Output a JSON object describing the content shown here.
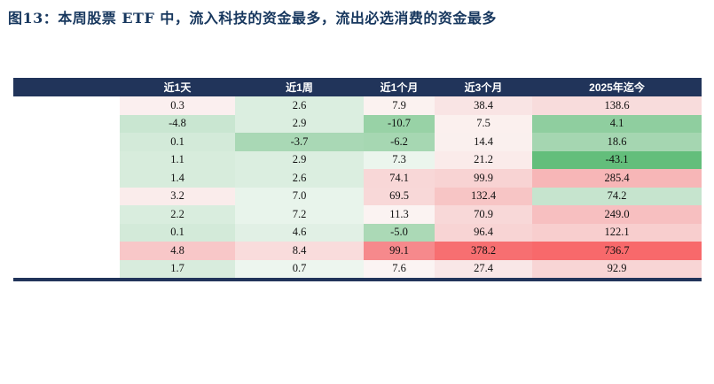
{
  "title": "图13：本周股票 ETF 中，流入科技的资金最多，流出必选消费的资金最多",
  "colors": {
    "title_text": "#17375E",
    "header_bg": "#21345A",
    "header_text": "#FFFFFF",
    "bottom_bar": "#21345A",
    "scale_low_green": "#63BE7B",
    "scale_mid_white": "#FFFFFF",
    "scale_high_red": "#F8696B"
  },
  "table": {
    "columns": [
      "近1天",
      "近1周",
      "近1个月",
      "近3个月",
      "2025年迄今"
    ],
    "rows": [
      [
        {
          "v": "0.3",
          "bg": "#FBEFEF"
        },
        {
          "v": "2.6",
          "bg": "#DBEEE0"
        },
        {
          "v": "7.9",
          "bg": "#FBF2F0"
        },
        {
          "v": "38.4",
          "bg": "#F9E4E4"
        },
        {
          "v": "138.6",
          "bg": "#F8DCDC"
        }
      ],
      [
        {
          "v": "-4.8",
          "bg": "#C9E6D1"
        },
        {
          "v": "2.9",
          "bg": "#DBEEE0"
        },
        {
          "v": "-10.7",
          "bg": "#98D2A6"
        },
        {
          "v": "7.5",
          "bg": "#FBF0EE"
        },
        {
          "v": "4.1",
          "bg": "#8FCE9F"
        }
      ],
      [
        {
          "v": "0.1",
          "bg": "#D3EAD9"
        },
        {
          "v": "-3.7",
          "bg": "#A9D8B5"
        },
        {
          "v": "-6.2",
          "bg": "#A6D7B2"
        },
        {
          "v": "14.4",
          "bg": "#FAF0EE"
        },
        {
          "v": "18.6",
          "bg": "#A5D6B1"
        }
      ],
      [
        {
          "v": "1.1",
          "bg": "#D7ECDC"
        },
        {
          "v": "2.9",
          "bg": "#DBEEE0"
        },
        {
          "v": "7.3",
          "bg": "#EBF5ED"
        },
        {
          "v": "21.2",
          "bg": "#FAEBEA"
        },
        {
          "v": "-43.1",
          "bg": "#63BE7B"
        }
      ],
      [
        {
          "v": "1.4",
          "bg": "#D7ECDC"
        },
        {
          "v": "2.6",
          "bg": "#DBEEE0"
        },
        {
          "v": "74.1",
          "bg": "#F8D7D7"
        },
        {
          "v": "99.9",
          "bg": "#F8D3D3"
        },
        {
          "v": "285.4",
          "bg": "#F7B6B7"
        }
      ],
      [
        {
          "v": "3.2",
          "bg": "#FAECEB"
        },
        {
          "v": "7.0",
          "bg": "#E8F4EB"
        },
        {
          "v": "69.5",
          "bg": "#F8D8D8"
        },
        {
          "v": "132.4",
          "bg": "#F7C5C5"
        },
        {
          "v": "74.2",
          "bg": "#C6E4CE"
        }
      ],
      [
        {
          "v": "2.2",
          "bg": "#D9EDDE"
        },
        {
          "v": "7.2",
          "bg": "#E8F4EB"
        },
        {
          "v": "11.3",
          "bg": "#FBF3F2"
        },
        {
          "v": "70.9",
          "bg": "#F8D8D8"
        },
        {
          "v": "249.0",
          "bg": "#F7BFC0"
        }
      ],
      [
        {
          "v": "0.1",
          "bg": "#D3EAD9"
        },
        {
          "v": "4.6",
          "bg": "#E1F0E5"
        },
        {
          "v": "-5.0",
          "bg": "#ABD9B6"
        },
        {
          "v": "96.4",
          "bg": "#F8D4D4"
        },
        {
          "v": "122.1",
          "bg": "#F8CECE"
        }
      ],
      [
        {
          "v": "4.8",
          "bg": "#F8C7C8"
        },
        {
          "v": "8.4",
          "bg": "#F9DCDC"
        },
        {
          "v": "99.1",
          "bg": "#F6898C"
        },
        {
          "v": "378.2",
          "bg": "#F76F71"
        },
        {
          "v": "736.7",
          "bg": "#F8696B"
        }
      ],
      [
        {
          "v": "1.7",
          "bg": "#D8ECDD"
        },
        {
          "v": "0.7",
          "bg": "#EDF6EF"
        },
        {
          "v": "7.6",
          "bg": "#FBF4F3"
        },
        {
          "v": "27.4",
          "bg": "#F9E7E7"
        },
        {
          "v": "92.9",
          "bg": "#F8D5D5"
        }
      ]
    ]
  },
  "chart_data": {
    "type": "heatmap",
    "title": "图13：本周股票 ETF 中，流入科技的资金最多，流出必选消费的资金最多",
    "columns": [
      "近1天",
      "近1周",
      "近1个月",
      "近3个月",
      "2025年迄今"
    ],
    "values": [
      [
        0.3,
        2.6,
        7.9,
        38.4,
        138.6
      ],
      [
        -4.8,
        2.9,
        -10.7,
        7.5,
        4.1
      ],
      [
        0.1,
        -3.7,
        -6.2,
        14.4,
        18.6
      ],
      [
        1.1,
        2.9,
        7.3,
        21.2,
        -43.1
      ],
      [
        1.4,
        2.6,
        74.1,
        99.9,
        285.4
      ],
      [
        3.2,
        7.0,
        69.5,
        132.4,
        74.2
      ],
      [
        2.2,
        7.2,
        11.3,
        70.9,
        249.0
      ],
      [
        0.1,
        4.6,
        -5.0,
        96.4,
        122.1
      ],
      [
        4.8,
        8.4,
        99.1,
        378.2,
        736.7
      ],
      [
        1.7,
        0.7,
        7.6,
        27.4,
        92.9
      ]
    ],
    "color_scale": {
      "low": "#63BE7B",
      "mid": "#FFFFFF",
      "high": "#F8696B"
    },
    "legend_position": "none",
    "grid": false
  }
}
